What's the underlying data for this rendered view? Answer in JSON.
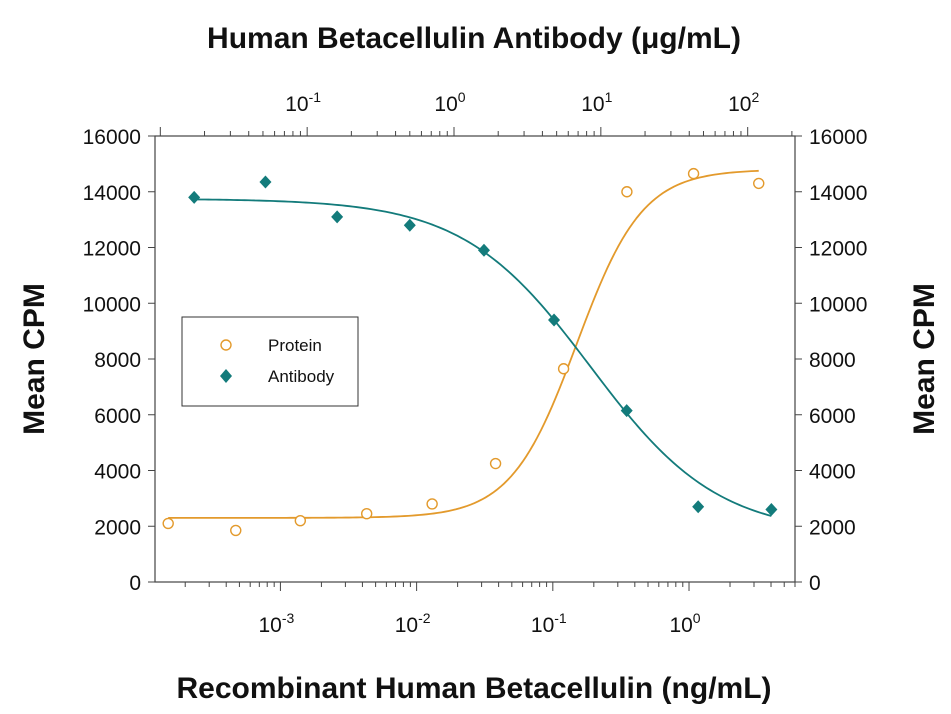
{
  "chart_data": {
    "type": "scatter",
    "title": "Human Betacellulin Antibody (μg/mL)",
    "xlabel": "Recombinant Human Betacellulin (ng/mL)",
    "ylabel": "Mean CPM",
    "y2label": "Mean CPM",
    "x_scale": "log",
    "x2_scale": "log",
    "xlim": [
      0.00012,
      6.0
    ],
    "x2lim": [
      0.0092,
      210
    ],
    "ylim": [
      0,
      16000
    ],
    "x_ticks": [
      {
        "value": 0.001,
        "base": "10",
        "exp": "-3"
      },
      {
        "value": 0.01,
        "base": "10",
        "exp": "-2"
      },
      {
        "value": 0.1,
        "base": "10",
        "exp": "-1"
      },
      {
        "value": 1,
        "base": "10",
        "exp": "0"
      }
    ],
    "x2_ticks": [
      {
        "value": 0.1,
        "base": "10",
        "exp": "-1"
      },
      {
        "value": 1,
        "base": "10",
        "exp": "0"
      },
      {
        "value": 10,
        "base": "10",
        "exp": "1"
      },
      {
        "value": 100,
        "base": "10",
        "exp": "2"
      }
    ],
    "y_ticks": [
      "0",
      "2000",
      "4000",
      "6000",
      "8000",
      "10000",
      "12000",
      "14000",
      "16000"
    ],
    "y_tick_values": [
      0,
      2000,
      4000,
      6000,
      8000,
      10000,
      12000,
      14000,
      16000
    ],
    "grid": false,
    "legend_position": "middle-left",
    "series": [
      {
        "name": "Protein",
        "axis": "bottom",
        "marker": "open-circle",
        "color": "#E39A2C",
        "points": [
          {
            "x": 0.00015,
            "y": 2100
          },
          {
            "x": 0.00047,
            "y": 1850
          },
          {
            "x": 0.0014,
            "y": 2200
          },
          {
            "x": 0.0043,
            "y": 2450
          },
          {
            "x": 0.013,
            "y": 2800
          },
          {
            "x": 0.038,
            "y": 4250
          },
          {
            "x": 0.12,
            "y": 7650
          },
          {
            "x": 0.35,
            "y": 14000
          },
          {
            "x": 1.08,
            "y": 14650
          },
          {
            "x": 3.25,
            "y": 14300
          }
        ],
        "fit": {
          "bottom": 2300,
          "top": 14800,
          "ec50": 0.15,
          "hill": 1.8
        }
      },
      {
        "name": "Antibody",
        "axis": "top",
        "marker": "filled-diamond",
        "color": "#137B7B",
        "points": [
          {
            "x": 0.017,
            "y": 13800
          },
          {
            "x": 0.052,
            "y": 14350
          },
          {
            "x": 0.16,
            "y": 13100
          },
          {
            "x": 0.5,
            "y": 12800
          },
          {
            "x": 1.6,
            "y": 11900
          },
          {
            "x": 4.8,
            "y": 9400
          },
          {
            "x": 15,
            "y": 6150
          },
          {
            "x": 46,
            "y": 2700
          },
          {
            "x": 145,
            "y": 2600
          }
        ],
        "fit": {
          "bottom": 1700,
          "top": 13750,
          "ec50": 8.5,
          "hill": 1.0
        }
      }
    ]
  }
}
